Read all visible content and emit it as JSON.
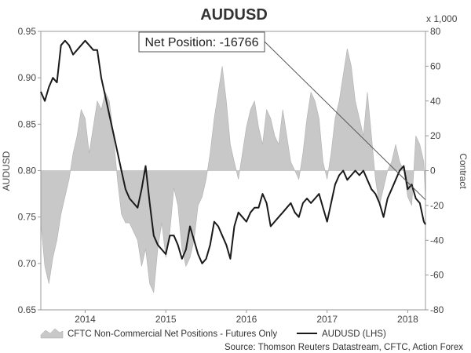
{
  "chart_data": {
    "type": "line",
    "title": "AUDUSD",
    "y_left_label": "AUDUSD",
    "y_right_label": "Contract",
    "y_right_unit": "x 1,000",
    "y_left_range": [
      0.65,
      0.95
    ],
    "y_left_ticks": [
      "0.65",
      "0.70",
      "0.75",
      "0.80",
      "0.85",
      "0.90",
      "0.95"
    ],
    "y_right_range": [
      -80,
      80
    ],
    "y_right_ticks": [
      "-80",
      "-60",
      "-40",
      "-20",
      "0",
      "20",
      "40",
      "60",
      "80"
    ],
    "x_range": [
      2013.45,
      2018.22
    ],
    "x_ticks": [
      "2014",
      "2015",
      "2016",
      "2017",
      "2018"
    ],
    "x_tick_positions": [
      2014.0,
      2015.0,
      2016.0,
      2017.0,
      2018.0
    ],
    "grid": false,
    "legend_position": "bottom",
    "annotation": {
      "text": "Net Position: -16766",
      "points_to": [
        2018.22,
        -16.766
      ]
    },
    "source": "Source: Thomson Reuters Datastream, CFTC, Action Forex",
    "series": [
      {
        "name": "CFTC Non-Commercial Net Positions - Futures Only",
        "type": "area",
        "axis": "right",
        "color": "#c8c8c8",
        "x": [
          2013.45,
          2013.5,
          2013.55,
          2013.6,
          2013.65,
          2013.7,
          2013.75,
          2013.8,
          2013.85,
          2013.9,
          2013.95,
          2014.0,
          2014.05,
          2014.1,
          2014.15,
          2014.2,
          2014.25,
          2014.3,
          2014.35,
          2014.4,
          2014.45,
          2014.5,
          2014.55,
          2014.6,
          2014.65,
          2014.7,
          2014.75,
          2014.8,
          2014.85,
          2014.9,
          2014.95,
          2015.0,
          2015.05,
          2015.1,
          2015.15,
          2015.2,
          2015.25,
          2015.3,
          2015.35,
          2015.4,
          2015.45,
          2015.5,
          2015.55,
          2015.6,
          2015.65,
          2015.7,
          2015.75,
          2015.8,
          2015.85,
          2015.9,
          2015.95,
          2016.0,
          2016.05,
          2016.1,
          2016.15,
          2016.2,
          2016.25,
          2016.3,
          2016.35,
          2016.4,
          2016.45,
          2016.5,
          2016.55,
          2016.6,
          2016.65,
          2016.7,
          2016.75,
          2016.8,
          2016.85,
          2016.9,
          2016.95,
          2017.0,
          2017.05,
          2017.1,
          2017.15,
          2017.2,
          2017.25,
          2017.3,
          2017.35,
          2017.4,
          2017.45,
          2017.5,
          2017.55,
          2017.6,
          2017.65,
          2017.7,
          2017.75,
          2017.8,
          2017.85,
          2017.9,
          2017.95,
          2018.0,
          2018.05,
          2018.1,
          2018.15,
          2018.2,
          2018.22
        ],
        "values": [
          -30,
          -55,
          -65,
          -50,
          -40,
          -25,
          -15,
          -5,
          10,
          20,
          35,
          30,
          10,
          25,
          40,
          35,
          45,
          40,
          20,
          -5,
          -25,
          -30,
          -30,
          -35,
          -40,
          -55,
          -45,
          -65,
          -70,
          -45,
          -30,
          -50,
          -35,
          -10,
          -20,
          -45,
          -55,
          -50,
          -40,
          -20,
          -15,
          -5,
          10,
          30,
          45,
          60,
          40,
          15,
          5,
          -5,
          10,
          25,
          35,
          40,
          25,
          15,
          35,
          30,
          20,
          15,
          35,
          20,
          5,
          0,
          -5,
          10,
          30,
          45,
          40,
          30,
          5,
          -5,
          10,
          30,
          40,
          55,
          70,
          60,
          40,
          30,
          20,
          45,
          20,
          -5,
          -20,
          -10,
          0,
          5,
          15,
          5,
          0,
          -15,
          -20,
          20,
          15,
          5,
          -16.766
        ]
      },
      {
        "name": "AUDUSD (LHS)",
        "type": "line",
        "axis": "left",
        "color": "#1a1a1a",
        "x": [
          2013.45,
          2013.5,
          2013.55,
          2013.6,
          2013.65,
          2013.7,
          2013.75,
          2013.8,
          2013.85,
          2013.9,
          2013.95,
          2014.0,
          2014.05,
          2014.1,
          2014.15,
          2014.2,
          2014.25,
          2014.3,
          2014.35,
          2014.4,
          2014.45,
          2014.5,
          2014.55,
          2014.6,
          2014.65,
          2014.7,
          2014.75,
          2014.8,
          2014.85,
          2014.9,
          2014.95,
          2015.0,
          2015.05,
          2015.1,
          2015.15,
          2015.2,
          2015.25,
          2015.3,
          2015.35,
          2015.4,
          2015.45,
          2015.5,
          2015.55,
          2015.6,
          2015.65,
          2015.7,
          2015.75,
          2015.8,
          2015.85,
          2015.9,
          2015.95,
          2016.0,
          2016.05,
          2016.1,
          2016.15,
          2016.2,
          2016.25,
          2016.3,
          2016.35,
          2016.4,
          2016.45,
          2016.5,
          2016.55,
          2016.6,
          2016.65,
          2016.7,
          2016.75,
          2016.8,
          2016.85,
          2016.9,
          2016.95,
          2017.0,
          2017.05,
          2017.1,
          2017.15,
          2017.2,
          2017.25,
          2017.3,
          2017.35,
          2017.4,
          2017.45,
          2017.5,
          2017.55,
          2017.6,
          2017.65,
          2017.7,
          2017.75,
          2017.8,
          2017.85,
          2017.9,
          2017.95,
          2018.0,
          2018.05,
          2018.1,
          2018.15,
          2018.2,
          2018.22
        ],
        "values": [
          0.885,
          0.875,
          0.89,
          0.9,
          0.895,
          0.935,
          0.94,
          0.935,
          0.925,
          0.93,
          0.935,
          0.94,
          0.935,
          0.93,
          0.93,
          0.9,
          0.88,
          0.86,
          0.84,
          0.82,
          0.8,
          0.78,
          0.77,
          0.765,
          0.76,
          0.78,
          0.805,
          0.765,
          0.73,
          0.72,
          0.715,
          0.71,
          0.73,
          0.73,
          0.72,
          0.705,
          0.715,
          0.74,
          0.725,
          0.71,
          0.7,
          0.705,
          0.72,
          0.745,
          0.74,
          0.73,
          0.72,
          0.705,
          0.74,
          0.755,
          0.75,
          0.745,
          0.755,
          0.76,
          0.76,
          0.775,
          0.765,
          0.74,
          0.745,
          0.75,
          0.755,
          0.76,
          0.765,
          0.755,
          0.75,
          0.765,
          0.77,
          0.765,
          0.77,
          0.775,
          0.76,
          0.745,
          0.765,
          0.785,
          0.795,
          0.8,
          0.79,
          0.795,
          0.8,
          0.795,
          0.8,
          0.79,
          0.78,
          0.775,
          0.765,
          0.75,
          0.77,
          0.78,
          0.79,
          0.8,
          0.805,
          0.78,
          0.785,
          0.77,
          0.765,
          0.745,
          0.742
        ]
      }
    ]
  }
}
